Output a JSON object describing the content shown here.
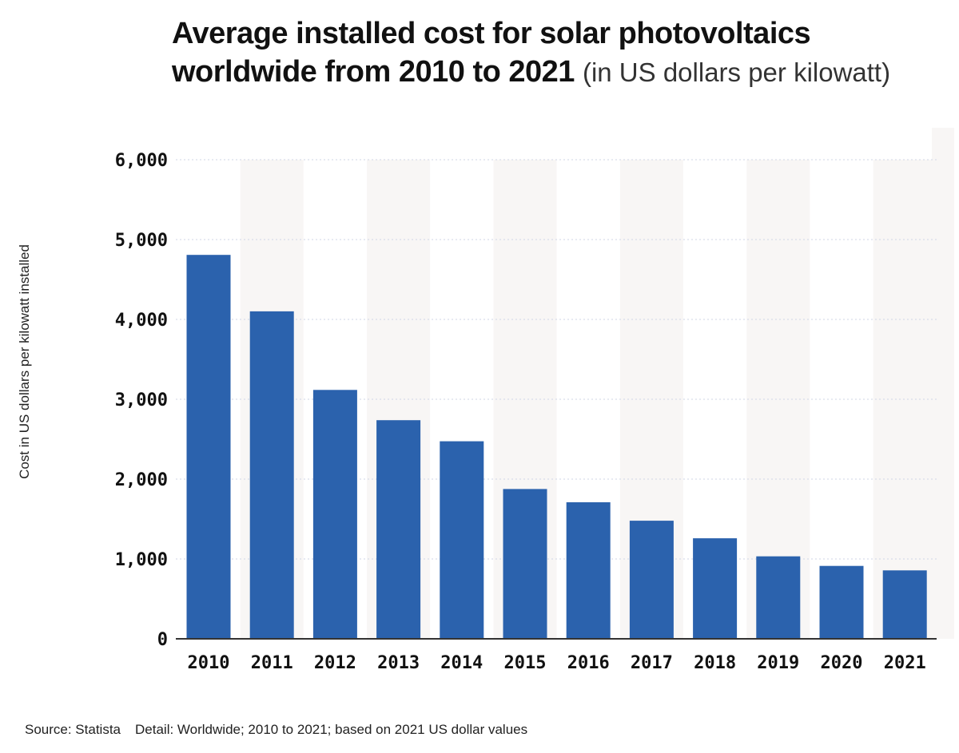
{
  "chart_data": {
    "type": "bar",
    "title": "Average installed cost for solar photovoltaics worldwide from 2010 to 2021",
    "title_unit": "(in US dollars per kilowatt)",
    "xlabel": "",
    "ylabel": "Cost in US dollars per kilowatt installed",
    "categories": [
      "2010",
      "2011",
      "2012",
      "2013",
      "2014",
      "2015",
      "2016",
      "2017",
      "2018",
      "2019",
      "2020",
      "2021"
    ],
    "values": [
      4808,
      4101,
      3117,
      2738,
      2474,
      1876,
      1710,
      1479,
      1259,
      1033,
      913,
      857
    ],
    "ylim": [
      0,
      6000
    ],
    "yticks": [
      0,
      1000,
      2000,
      3000,
      4000,
      5000,
      6000
    ],
    "ytick_labels": [
      "0",
      "1,000",
      "2,000",
      "3,000",
      "4,000",
      "5,000",
      "6,000"
    ],
    "grid": true,
    "legend": "none",
    "bar_color": "#2b62ad",
    "band_color": "#f8f6f5",
    "grid_color": "#cfd6e6",
    "axis_color": "#333333"
  },
  "footer": {
    "source": "Source: Statista",
    "detail": "Detail: Worldwide; 2010 to 2021; based on 2021 US dollar values"
  }
}
